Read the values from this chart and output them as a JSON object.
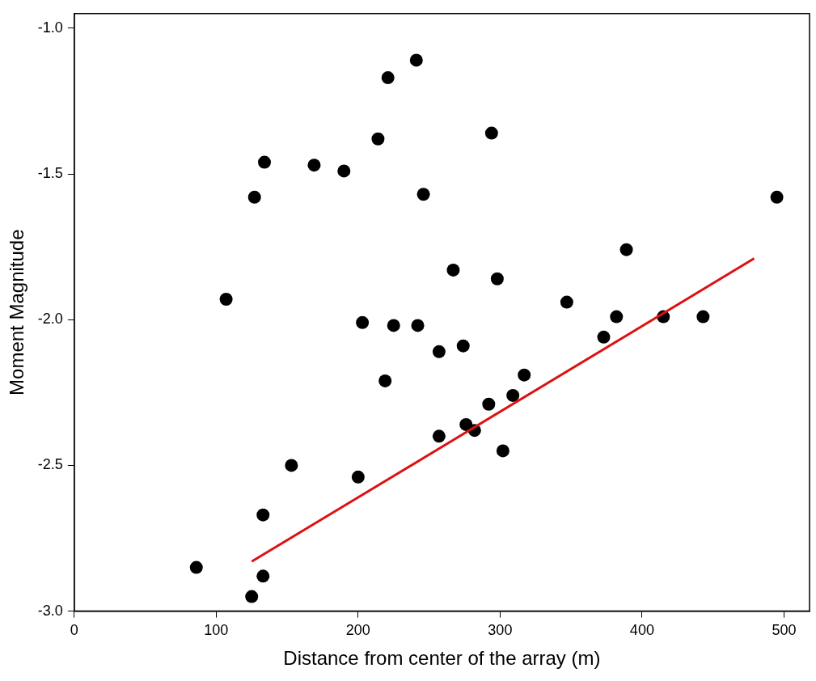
{
  "chart_data": {
    "type": "scatter",
    "xlabel": "Distance from center of the array (m)",
    "ylabel": "Moment Magnitude",
    "xlim": [
      0,
      518
    ],
    "xticks": [
      0,
      100,
      200,
      300,
      400,
      500
    ],
    "ylim": [
      -3.0,
      -0.95
    ],
    "yticks": [
      {
        "value": -3,
        "label": "-3.0"
      },
      {
        "value": -2.5,
        "label": "-2.5"
      },
      {
        "value": -2,
        "label": "-2.0"
      },
      {
        "value": -1.5,
        "label": "-1.5"
      },
      {
        "value": -1,
        "label": "-1.0"
      }
    ],
    "grid": false,
    "legend": false,
    "marker": "circle",
    "series": [
      {
        "color": "#000000",
        "x": [
          86,
          107,
          125,
          127,
          134,
          133,
          133,
          153,
          169,
          190,
          200,
          203,
          214,
          219,
          221,
          225,
          241,
          242,
          246,
          257,
          257,
          267,
          274,
          276,
          282,
          292,
          294,
          298,
          302,
          309,
          317,
          347,
          373,
          382,
          389,
          415,
          443,
          495
        ],
        "values": [
          -2.85,
          -1.93,
          -2.95,
          -1.58,
          -1.46,
          -2.67,
          -2.88,
          -2.5,
          -1.47,
          -1.49,
          -2.54,
          -2.01,
          -1.38,
          -2.21,
          -1.17,
          -2.02,
          -1.11,
          -2.02,
          -1.57,
          -2.11,
          -2.4,
          -1.83,
          -2.09,
          -2.36,
          -2.38,
          -2.29,
          -1.36,
          -1.86,
          -2.45,
          -2.26,
          -2.19,
          -1.94,
          -2.06,
          -1.99,
          -1.76,
          -1.99,
          -1.99,
          -1.58
        ]
      },
      {
        "type": "line",
        "marker": "none",
        "color": "#dd1111",
        "x": [
          125,
          479
        ],
        "values": [
          -2.83,
          -1.79
        ]
      }
    ]
  }
}
